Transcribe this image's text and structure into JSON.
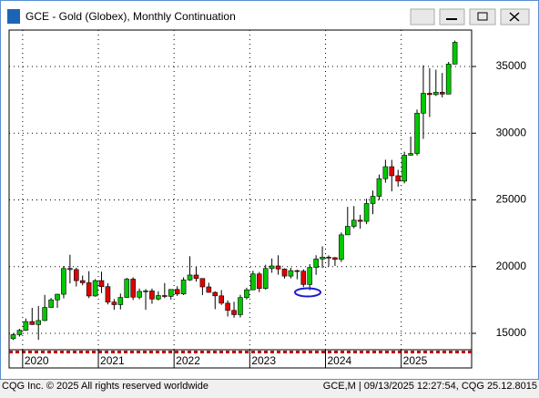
{
  "window": {
    "title": "GCE - Gold (Globex), Monthly Continuation"
  },
  "chart_data": {
    "type": "candlestick",
    "categories": [
      null,
      null,
      "2020",
      null,
      null,
      null,
      null,
      null,
      null,
      null,
      null,
      null,
      null,
      null,
      "2021",
      null,
      null,
      null,
      null,
      null,
      null,
      null,
      null,
      null,
      null,
      null,
      "2022",
      null,
      null,
      null,
      null,
      null,
      null,
      null,
      null,
      null,
      null,
      null,
      "2023",
      null,
      null,
      null,
      null,
      null,
      null,
      null,
      null,
      null,
      null,
      null,
      "2024",
      null,
      null,
      null,
      null,
      null,
      null,
      null,
      null,
      null,
      null,
      null,
      "2025",
      null,
      null,
      null,
      null,
      null,
      null,
      null,
      null
    ],
    "open": [
      14600,
      14900,
      15230,
      15880,
      15660,
      15960,
      16940,
      17510,
      17930,
      19860,
      19780,
      18950,
      18790,
      17800,
      18950,
      18500,
      17340,
      17150,
      17690,
      19060,
      17710,
      18140,
      18180,
      17570,
      17830,
      17770,
      18290,
      17950,
      19000,
      19370,
      19110,
      18480,
      18070,
      17810,
      17260,
      16720,
      16400,
      17680,
      18260,
      19450,
      18360,
      19860,
      20050,
      19820,
      19290,
      19700,
      19660,
      18660,
      19940,
      20570,
      20710,
      20670,
      20540,
      22380,
      23020,
      23480,
      23390,
      24730,
      25270,
      26590,
      27490,
      26810,
      26410,
      28350,
      28480,
      31500,
      32990,
      32890,
      33070,
      32930,
      35180
    ],
    "high": [
      15000,
      15330,
      16110,
      16910,
      17050,
      17880,
      17650,
      17960,
      20050,
      20890,
      19920,
      19330,
      19660,
      19060,
      19620,
      18750,
      17570,
      17980,
      19160,
      19200,
      18360,
      18320,
      18360,
      18150,
      18770,
      18310,
      18530,
      19200,
      20780,
      19980,
      19110,
      18790,
      18150,
      18240,
      17470,
      17360,
      17890,
      18420,
      19690,
      19600,
      20140,
      20610,
      20850,
      19870,
      19910,
      19770,
      19800,
      20190,
      20850,
      21520,
      20840,
      20720,
      22560,
      24480,
      24540,
      23880,
      25090,
      25700,
      26900,
      28010,
      28000,
      27260,
      28610,
      29740,
      31770,
      35090,
      34870,
      34760,
      34510,
      35340,
      36940
    ],
    "low": [
      14500,
      14760,
      15180,
      15630,
      14510,
      15910,
      16930,
      16910,
      17620,
      18740,
      18510,
      18600,
      17640,
      17750,
      18020,
      17170,
      16760,
      16790,
      17660,
      17500,
      17550,
      16770,
      17210,
      17470,
      17640,
      17530,
      17800,
      17870,
      18930,
      18880,
      17870,
      18050,
      16810,
      17130,
      16260,
      16170,
      16190,
      17530,
      18260,
      18090,
      18280,
      19540,
      19390,
      19110,
      19120,
      19050,
      18470,
      18230,
      19380,
      19900,
      20020,
      20050,
      20350,
      22380,
      22870,
      22840,
      23180,
      23930,
      24990,
      26290,
      25640,
      25990,
      26240,
      28320,
      28330,
      29570,
      31210,
      32790,
      32680,
      33140,
      35160
    ],
    "close": [
      14900,
      15230,
      15880,
      15660,
      15960,
      16940,
      17510,
      17930,
      19860,
      19780,
      18950,
      18790,
      17800,
      18950,
      18500,
      17340,
      17150,
      17690,
      19060,
      17710,
      18140,
      18180,
      17570,
      17830,
      17770,
      18290,
      17950,
      19000,
      19370,
      19110,
      18480,
      18070,
      17810,
      17260,
      16720,
      16400,
      17680,
      18260,
      19450,
      18360,
      19860,
      20050,
      19820,
      19290,
      19700,
      19660,
      18660,
      19940,
      20570,
      20710,
      20670,
      20540,
      22380,
      23020,
      23480,
      23390,
      24730,
      25270,
      26590,
      27490,
      26810,
      26410,
      28350,
      28480,
      31500,
      32990,
      32890,
      33070,
      32930,
      35180,
      36810
    ],
    "up_color": "#00c800",
    "down_color": "#e00000",
    "ylim": [
      13770,
      37730
    ],
    "yticks": [
      15000,
      20000,
      25000,
      30000,
      35000
    ],
    "grid": true
  },
  "footer": {
    "left": "CQG Inc. © 2025 All rights reserved worldwide",
    "right": "GCE,M | 09/13/2025 12:27:54, CQG 25.12.8015"
  }
}
